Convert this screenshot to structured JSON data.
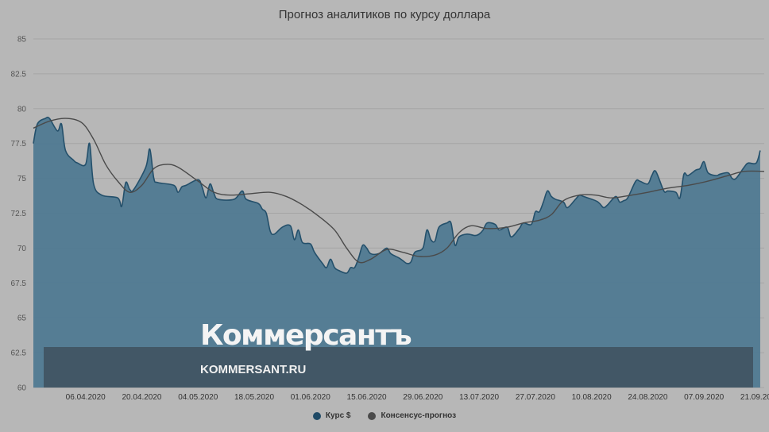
{
  "chart_data": {
    "type": "area",
    "title": "Прогноз аналитиков по курсу доллара",
    "xlabel": "",
    "ylabel": "",
    "ylim": [
      60,
      85
    ],
    "yticks": [
      "60",
      "62.5",
      "65",
      "67.5",
      "70",
      "72.5",
      "75",
      "77.5",
      "80",
      "82.5",
      "85"
    ],
    "xlim": [
      "2020-03-24",
      "2020-09-22"
    ],
    "xticks": [
      {
        "date": "2020-04-06",
        "label": "06.04.2020"
      },
      {
        "date": "2020-04-20",
        "label": "20.04.2020"
      },
      {
        "date": "2020-05-04",
        "label": "04.05.2020"
      },
      {
        "date": "2020-05-18",
        "label": "18.05.2020"
      },
      {
        "date": "2020-06-01",
        "label": "01.06.2020"
      },
      {
        "date": "2020-06-15",
        "label": "15.06.2020"
      },
      {
        "date": "2020-06-29",
        "label": "29.06.2020"
      },
      {
        "date": "2020-07-13",
        "label": "13.07.2020"
      },
      {
        "date": "2020-07-27",
        "label": "27.07.2020"
      },
      {
        "date": "2020-08-10",
        "label": "10.08.2020"
      },
      {
        "date": "2020-08-24",
        "label": "24.08.2020"
      },
      {
        "date": "2020-09-07",
        "label": "07.09.2020"
      },
      {
        "date": "2020-09-21",
        "label": "21.09.2020"
      }
    ],
    "legend_position": "bottom",
    "grid": true,
    "series": [
      {
        "name": "Курс $",
        "color": "#4c7a96",
        "kind": "area",
        "points": [
          [
            "2020-03-24",
            77.5
          ],
          [
            "2020-03-25",
            78.9
          ],
          [
            "2020-03-27",
            79.3
          ],
          [
            "2020-03-28",
            79.3
          ],
          [
            "2020-03-30",
            78.4
          ],
          [
            "2020-03-31",
            78.9
          ],
          [
            "2020-04-01",
            77.0
          ],
          [
            "2020-04-03",
            76.3
          ],
          [
            "2020-04-04",
            76.1
          ],
          [
            "2020-04-06",
            76.0
          ],
          [
            "2020-04-07",
            77.5
          ],
          [
            "2020-04-08",
            74.6
          ],
          [
            "2020-04-10",
            73.8
          ],
          [
            "2020-04-14",
            73.6
          ],
          [
            "2020-04-15",
            73.0
          ],
          [
            "2020-04-16",
            74.7
          ],
          [
            "2020-04-17",
            74.2
          ],
          [
            "2020-04-18",
            74.2
          ],
          [
            "2020-04-21",
            75.8
          ],
          [
            "2020-04-22",
            77.1
          ],
          [
            "2020-04-23",
            75.0
          ],
          [
            "2020-04-24",
            74.7
          ],
          [
            "2020-04-28",
            74.5
          ],
          [
            "2020-04-29",
            74.0
          ],
          [
            "2020-04-30",
            74.4
          ],
          [
            "2020-05-01",
            74.5
          ],
          [
            "2020-05-04",
            74.9
          ],
          [
            "2020-05-05",
            74.4
          ],
          [
            "2020-05-06",
            73.6
          ],
          [
            "2020-05-07",
            74.6
          ],
          [
            "2020-05-08",
            73.9
          ],
          [
            "2020-05-09",
            73.5
          ],
          [
            "2020-05-13",
            73.5
          ],
          [
            "2020-05-15",
            74.1
          ],
          [
            "2020-05-16",
            73.5
          ],
          [
            "2020-05-19",
            73.2
          ],
          [
            "2020-05-20",
            72.8
          ],
          [
            "2020-05-21",
            72.5
          ],
          [
            "2020-05-22",
            71.2
          ],
          [
            "2020-05-23",
            71.0
          ],
          [
            "2020-05-25",
            71.5
          ],
          [
            "2020-05-27",
            71.6
          ],
          [
            "2020-05-28",
            70.6
          ],
          [
            "2020-05-29",
            71.3
          ],
          [
            "2020-05-30",
            70.4
          ],
          [
            "2020-06-01",
            70.3
          ],
          [
            "2020-06-02",
            69.7
          ],
          [
            "2020-06-04",
            68.9
          ],
          [
            "2020-06-05",
            68.6
          ],
          [
            "2020-06-06",
            69.2
          ],
          [
            "2020-06-07",
            68.6
          ],
          [
            "2020-06-08",
            68.4
          ],
          [
            "2020-06-10",
            68.2
          ],
          [
            "2020-06-11",
            68.6
          ],
          [
            "2020-06-12",
            68.6
          ],
          [
            "2020-06-13",
            69.3
          ],
          [
            "2020-06-14",
            70.2
          ],
          [
            "2020-06-15",
            70.0
          ],
          [
            "2020-06-16",
            69.6
          ],
          [
            "2020-06-18",
            69.6
          ],
          [
            "2020-06-20",
            70.0
          ],
          [
            "2020-06-21",
            69.6
          ],
          [
            "2020-06-23",
            69.3
          ],
          [
            "2020-06-24",
            69.1
          ],
          [
            "2020-06-25",
            68.9
          ],
          [
            "2020-06-26",
            69.0
          ],
          [
            "2020-06-27",
            69.7
          ],
          [
            "2020-06-29",
            70.0
          ],
          [
            "2020-06-30",
            71.3
          ],
          [
            "2020-07-01",
            70.6
          ],
          [
            "2020-07-02",
            70.5
          ],
          [
            "2020-07-03",
            71.5
          ],
          [
            "2020-07-05",
            71.8
          ],
          [
            "2020-07-06",
            71.8
          ],
          [
            "2020-07-07",
            70.2
          ],
          [
            "2020-07-08",
            70.8
          ],
          [
            "2020-07-10",
            71.0
          ],
          [
            "2020-07-12",
            70.9
          ],
          [
            "2020-07-13",
            71.0
          ],
          [
            "2020-07-14",
            71.3
          ],
          [
            "2020-07-15",
            71.8
          ],
          [
            "2020-07-17",
            71.7
          ],
          [
            "2020-07-18",
            71.3
          ],
          [
            "2020-07-20",
            71.5
          ],
          [
            "2020-07-21",
            70.8
          ],
          [
            "2020-07-23",
            71.4
          ],
          [
            "2020-07-24",
            71.8
          ],
          [
            "2020-07-26",
            71.7
          ],
          [
            "2020-07-27",
            72.6
          ],
          [
            "2020-07-28",
            72.6
          ],
          [
            "2020-07-29",
            73.3
          ],
          [
            "2020-07-30",
            74.1
          ],
          [
            "2020-07-31",
            73.7
          ],
          [
            "2020-08-01",
            73.5
          ],
          [
            "2020-08-03",
            73.3
          ],
          [
            "2020-08-04",
            72.9
          ],
          [
            "2020-08-06",
            73.5
          ],
          [
            "2020-08-07",
            73.8
          ],
          [
            "2020-08-08",
            73.7
          ],
          [
            "2020-08-11",
            73.4
          ],
          [
            "2020-08-12",
            73.2
          ],
          [
            "2020-08-13",
            72.9
          ],
          [
            "2020-08-14",
            73.1
          ],
          [
            "2020-08-16",
            73.7
          ],
          [
            "2020-08-17",
            73.3
          ],
          [
            "2020-08-18",
            73.4
          ],
          [
            "2020-08-19",
            73.6
          ],
          [
            "2020-08-21",
            74.8
          ],
          [
            "2020-08-22",
            74.8
          ],
          [
            "2020-08-24",
            74.6
          ],
          [
            "2020-08-25",
            75.2
          ],
          [
            "2020-08-26",
            75.5
          ],
          [
            "2020-08-28",
            74.1
          ],
          [
            "2020-08-29",
            74.1
          ],
          [
            "2020-08-31",
            74.0
          ],
          [
            "2020-09-01",
            73.6
          ],
          [
            "2020-09-02",
            75.3
          ],
          [
            "2020-09-03",
            75.2
          ],
          [
            "2020-09-05",
            75.6
          ],
          [
            "2020-09-06",
            75.7
          ],
          [
            "2020-09-07",
            76.2
          ],
          [
            "2020-09-08",
            75.4
          ],
          [
            "2020-09-10",
            75.2
          ],
          [
            "2020-09-11",
            75.3
          ],
          [
            "2020-09-13",
            75.4
          ],
          [
            "2020-09-14",
            75.0
          ],
          [
            "2020-09-15",
            75.0
          ],
          [
            "2020-09-17",
            75.8
          ],
          [
            "2020-09-18",
            76.1
          ],
          [
            "2020-09-20",
            76.1
          ],
          [
            "2020-09-21",
            77.0
          ]
        ]
      },
      {
        "name": "Консенсус-прогноз",
        "color": "#4a4a4a",
        "kind": "line",
        "points": [
          [
            "2020-03-24",
            78.6
          ],
          [
            "2020-03-28",
            79.1
          ],
          [
            "2020-04-01",
            79.3
          ],
          [
            "2020-04-05",
            79.0
          ],
          [
            "2020-04-08",
            77.8
          ],
          [
            "2020-04-11",
            76.0
          ],
          [
            "2020-04-14",
            74.8
          ],
          [
            "2020-04-17",
            74.0
          ],
          [
            "2020-04-20",
            74.5
          ],
          [
            "2020-04-23",
            75.7
          ],
          [
            "2020-04-26",
            76.0
          ],
          [
            "2020-04-29",
            75.8
          ],
          [
            "2020-05-04",
            74.8
          ],
          [
            "2020-05-08",
            74.0
          ],
          [
            "2020-05-12",
            73.8
          ],
          [
            "2020-05-17",
            73.9
          ],
          [
            "2020-05-22",
            74.0
          ],
          [
            "2020-05-26",
            73.7
          ],
          [
            "2020-05-30",
            73.1
          ],
          [
            "2020-06-03",
            72.3
          ],
          [
            "2020-06-07",
            71.3
          ],
          [
            "2020-06-10",
            70.0
          ],
          [
            "2020-06-13",
            69.0
          ],
          [
            "2020-06-16",
            69.2
          ],
          [
            "2020-06-20",
            69.9
          ],
          [
            "2020-06-24",
            69.7
          ],
          [
            "2020-06-28",
            69.4
          ],
          [
            "2020-07-02",
            69.5
          ],
          [
            "2020-07-05",
            70.0
          ],
          [
            "2020-07-08",
            71.1
          ],
          [
            "2020-07-11",
            71.6
          ],
          [
            "2020-07-15",
            71.4
          ],
          [
            "2020-07-20",
            71.5
          ],
          [
            "2020-07-24",
            71.8
          ],
          [
            "2020-07-28",
            72.0
          ],
          [
            "2020-07-31",
            72.4
          ],
          [
            "2020-08-03",
            73.4
          ],
          [
            "2020-08-07",
            73.8
          ],
          [
            "2020-08-11",
            73.8
          ],
          [
            "2020-08-15",
            73.6
          ],
          [
            "2020-08-20",
            73.8
          ],
          [
            "2020-08-24",
            74.0
          ],
          [
            "2020-08-29",
            74.3
          ],
          [
            "2020-09-03",
            74.5
          ],
          [
            "2020-09-08",
            74.8
          ],
          [
            "2020-09-13",
            75.2
          ],
          [
            "2020-09-17",
            75.5
          ],
          [
            "2020-09-22",
            75.5
          ]
        ]
      }
    ]
  },
  "watermark": {
    "brand": "Коммерсантъ",
    "url": "KOMMERSANT.RU"
  }
}
